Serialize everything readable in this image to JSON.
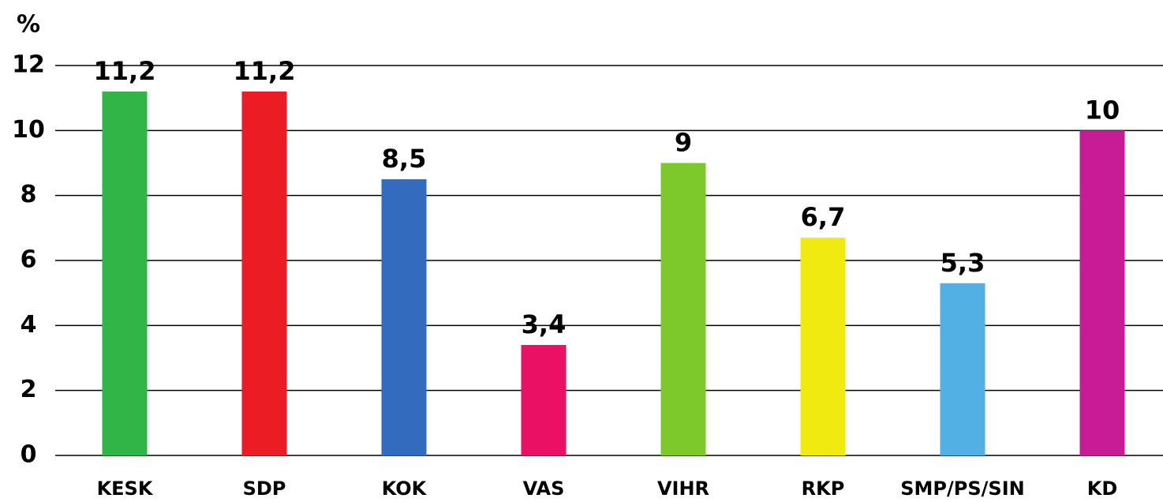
{
  "chart_data": {
    "type": "bar",
    "ylabel": "%",
    "categories": [
      "KESK",
      "SDP",
      "KOK",
      "VAS",
      "VIHR",
      "RKP",
      "SMP/PS/SIN",
      "KD"
    ],
    "values": [
      11.2,
      11.2,
      8.5,
      3.4,
      9,
      6.7,
      5.3,
      10
    ],
    "value_labels": [
      "11,2",
      "11,2",
      "8,5",
      "3,4",
      "9",
      "6,7",
      "5,3",
      "10"
    ],
    "colors": [
      "#30b546",
      "#ec1c24",
      "#336cbf",
      "#ea1064",
      "#7dc82b",
      "#f0ea10",
      "#52b0e5",
      "#c81c96"
    ],
    "ylim": [
      0,
      12
    ],
    "yticks": [
      0,
      2,
      4,
      6,
      8,
      10,
      12
    ],
    "grid": true
  }
}
